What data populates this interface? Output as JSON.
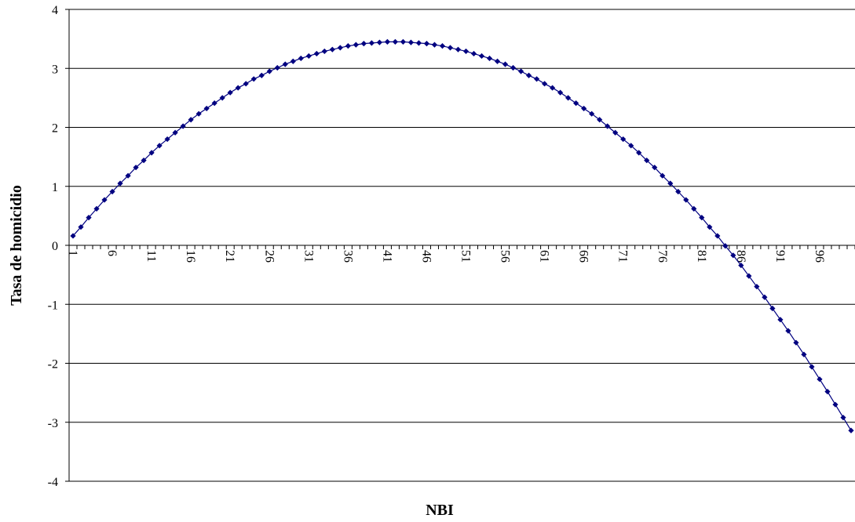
{
  "chart_data": {
    "type": "line",
    "x_label": "NBI",
    "y_label": "Tasa de homicidio",
    "categories": [
      "1",
      null,
      null,
      null,
      null,
      "6",
      null,
      null,
      null,
      null,
      "11",
      null,
      null,
      null,
      null,
      "16",
      null,
      null,
      null,
      null,
      "21",
      null,
      null,
      null,
      null,
      "26",
      null,
      null,
      null,
      null,
      "31",
      null,
      null,
      null,
      null,
      "36",
      null,
      null,
      null,
      null,
      "41",
      null,
      null,
      null,
      null,
      "46",
      null,
      null,
      null,
      null,
      "51",
      null,
      null,
      null,
      null,
      "56",
      null,
      null,
      null,
      null,
      "61",
      null,
      null,
      null,
      null,
      "66",
      null,
      null,
      null,
      null,
      "71",
      null,
      null,
      null,
      null,
      "76",
      null,
      null,
      null,
      null,
      "81",
      null,
      null,
      null,
      null,
      "86",
      null,
      null,
      null,
      null,
      "91",
      null,
      null,
      null,
      null,
      "96",
      null,
      null,
      null,
      null
    ],
    "series": [
      {
        "color": "#000080",
        "values": [
          0.16,
          0.31,
          0.47,
          0.62,
          0.77,
          0.91,
          1.05,
          1.18,
          1.32,
          1.44,
          1.57,
          1.69,
          1.8,
          1.91,
          2.02,
          2.13,
          2.23,
          2.32,
          2.41,
          2.5,
          2.59,
          2.67,
          2.74,
          2.82,
          2.88,
          2.95,
          3.01,
          3.07,
          3.12,
          3.17,
          3.21,
          3.25,
          3.29,
          3.32,
          3.35,
          3.38,
          3.4,
          3.42,
          3.43,
          3.44,
          3.45,
          3.45,
          3.45,
          3.44,
          3.43,
          3.42,
          3.4,
          3.38,
          3.35,
          3.32,
          3.29,
          3.25,
          3.21,
          3.17,
          3.12,
          3.07,
          3.01,
          2.95,
          2.88,
          2.82,
          2.74,
          2.67,
          2.59,
          2.5,
          2.41,
          2.32,
          2.23,
          2.13,
          2.02,
          1.91,
          1.8,
          1.69,
          1.57,
          1.44,
          1.32,
          1.18,
          1.05,
          0.91,
          0.77,
          0.62,
          0.47,
          0.31,
          0.16,
          -0.01,
          -0.17,
          -0.34,
          -0.52,
          -0.7,
          -0.88,
          -1.07,
          -1.26,
          -1.45,
          -1.65,
          -1.85,
          -2.06,
          -2.27,
          -2.48,
          -2.7,
          -2.92,
          -3.14
        ]
      }
    ],
    "ylim": [
      -4,
      4
    ],
    "yticks": [
      -4,
      -3,
      -2,
      -1,
      0,
      1,
      2,
      3,
      4
    ],
    "grid": true
  }
}
